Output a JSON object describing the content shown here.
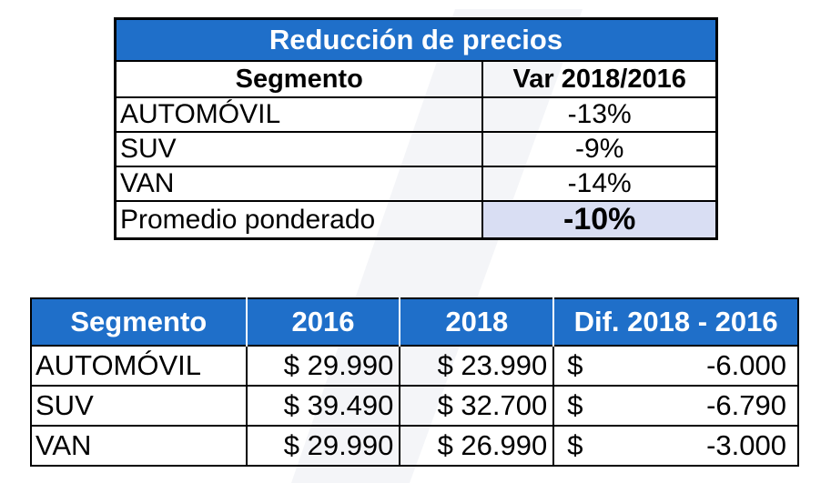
{
  "table1": {
    "title": "Reducción de precios",
    "headers": [
      "Segmento",
      "Var 2018/2016"
    ],
    "rows": [
      {
        "segment": "AUTOMÓVIL",
        "var": "-13%"
      },
      {
        "segment": "SUV",
        "var": "-9%"
      },
      {
        "segment": "VAN",
        "var": "-14%"
      },
      {
        "segment": "Promedio ponderado",
        "var": "-10%"
      }
    ],
    "colors": {
      "title_bg": "#1f6fc9",
      "highlight_bg": "#d9def3"
    }
  },
  "table2": {
    "headers": [
      "Segmento",
      "2016",
      "2018",
      "Dif. 2018 - 2016"
    ],
    "rows": [
      {
        "segment": "AUTOMÓVIL",
        "y2016": "$ 29.990",
        "y2018": "$ 23.990",
        "currency": "$",
        "diff": "-6.000"
      },
      {
        "segment": "SUV",
        "y2016": "$ 39.490",
        "y2018": "$ 32.700",
        "currency": "$",
        "diff": "-6.790"
      },
      {
        "segment": "VAN",
        "y2016": "$ 29.990",
        "y2018": "$ 26.990",
        "currency": "$",
        "diff": "-3.000"
      }
    ],
    "colors": {
      "header_bg": "#1f6fc9"
    }
  }
}
